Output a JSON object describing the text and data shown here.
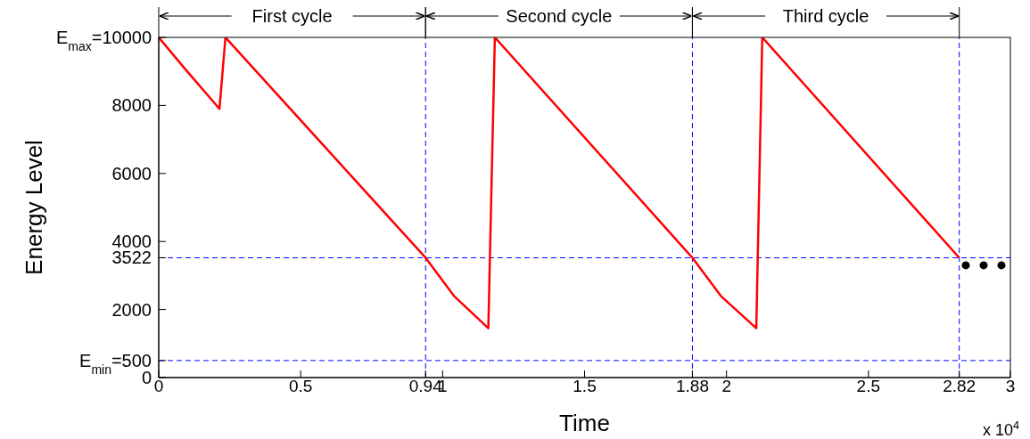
{
  "chart_data": {
    "type": "line",
    "xlabel": "Time",
    "ylabel": "Energy Level",
    "series": [
      {
        "color": "#ff0000",
        "x": [
          0,
          0.09,
          0.214,
          0.235,
          0.94,
          1.04,
          1.161,
          1.184,
          1.88,
          1.98,
          2.105,
          2.126,
          2.82
        ],
        "values": [
          10000,
          9100,
          7900,
          10000,
          3522,
          2400,
          1450,
          10000,
          3522,
          2400,
          1450,
          10000,
          3522
        ]
      }
    ],
    "xlim": [
      0,
      3
    ],
    "xticks": [
      0,
      0.5,
      0.94,
      1,
      1.5,
      1.88,
      2,
      2.5,
      2.82,
      3
    ],
    "ylim": [
      0,
      10000
    ],
    "yticks": [
      0,
      {
        "value": 500,
        "label": "E$_{min}$=500"
      },
      2000,
      3522,
      4000,
      6000,
      8000,
      {
        "value": 10000,
        "label": "E$_{max}$=10000"
      }
    ],
    "ref_lines": [
      {
        "axis": "x",
        "value": 0.94,
        "color": "#0000ff",
        "line_style": "dashed"
      },
      {
        "axis": "x",
        "value": 1.88,
        "color": "#0000ff",
        "line_style": "dashed"
      },
      {
        "axis": "x",
        "value": 2.82,
        "color": "#0000ff",
        "line_style": "dashed"
      },
      {
        "axis": "y",
        "value": 3522,
        "color": "#0000ff",
        "line_style": "dashed"
      },
      {
        "axis": "y",
        "value": 500,
        "color": "#0000ff",
        "line_style": "dashed"
      }
    ],
    "annotations": [
      "First cycle",
      "Second cycle",
      "Third cycle",
      "x 10$^{4}$"
    ],
    "grid": false,
    "legend": false,
    "marker": "none",
    "line_style": "solid"
  }
}
